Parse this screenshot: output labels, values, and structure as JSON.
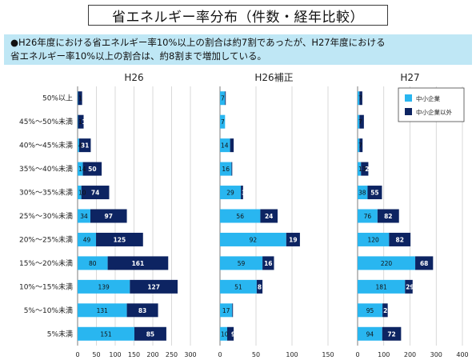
{
  "title": "省エネルギー率分布（件数・経年比較）",
  "summary": {
    "line1": "●H26年度における省エネルギー率10%以上の割合は約7割であったが、H27年度における",
    "line2": "省エネルギー率10%以上の割合は、約8割まで増加している。"
  },
  "colors": {
    "sme": "#29b6f0",
    "non_sme": "#0d2462",
    "grid": "#c9c9c9"
  },
  "chart_data": {
    "type": "bar",
    "orientation": "horizontal",
    "stacked": true,
    "categories": [
      "50%以上",
      "45%～50%未満",
      "40%～45%未満",
      "35%～40%未満",
      "30%～35%未満",
      "25%～30%未満",
      "20%～25%未満",
      "15%～20%未満",
      "10%～15%未満",
      "5%～10%未満",
      "5%未満"
    ],
    "legend": {
      "position": "top-right",
      "entries": [
        "中小企業",
        "中小企業以外"
      ]
    },
    "grid": true,
    "panels": [
      {
        "title": "H26",
        "xlim": [
          0,
          300
        ],
        "xticks": [
          0,
          50,
          100,
          150,
          200,
          250,
          300
        ],
        "series": [
          {
            "name": "中小企業",
            "values": [
              1,
              1,
              4,
              14,
              10,
              34,
              49,
              80,
              139,
              131,
              151
            ],
            "labels": [
              "1",
              "1",
              "4",
              "14",
              "10",
              "34",
              "49",
              "80",
              "139",
              "131",
              "151"
            ]
          },
          {
            "name": "中小企業以外",
            "values": [
              11,
              15,
              31,
              50,
              74,
              97,
              125,
              161,
              127,
              83,
              85
            ],
            "labels": [
              "11",
              "15",
              "31",
              "50",
              "74",
              "97",
              "125",
              "161",
              "127",
              "83",
              "85"
            ]
          }
        ]
      },
      {
        "title": "H26補正",
        "xlim": [
          0,
          150
        ],
        "xticks": [
          0,
          50,
          100,
          150
        ],
        "series": [
          {
            "name": "中小企業",
            "values": [
              7,
              7,
              14,
              16,
              29,
              56,
              92,
              59,
              51,
              17,
              10
            ],
            "labels": [
              "7",
              "7",
              "14",
              "16",
              "29",
              "56",
              "92",
              "59",
              "51",
              "17",
              "10"
            ]
          },
          {
            "name": "中小企業以外",
            "values": [
              1,
              0,
              5,
              1,
              3,
              24,
              19,
              16,
              8,
              1,
              9
            ],
            "labels": [
              "1",
              "",
              "5",
              "1",
              "3",
              "24",
              "19",
              "16",
              "8",
              "1",
              "9"
            ]
          }
        ]
      },
      {
        "title": "H27",
        "xlim": [
          0,
          400
        ],
        "xticks": [
          0,
          100,
          200,
          300,
          400
        ],
        "series": [
          {
            "name": "中小企業",
            "values": [
              7,
              7,
              7,
              13,
              38,
              76,
              120,
              220,
              181,
              95,
              94
            ],
            "labels": [
              "7",
              "7",
              "7",
              "13",
              "38",
              "76",
              "120",
              "220",
              "181",
              "95",
              "94"
            ]
          },
          {
            "name": "中小企業以外",
            "values": [
              11,
              17,
              12,
              28,
              55,
              82,
              82,
              68,
              29,
              20,
              72
            ],
            "labels": [
              "11",
              "17",
              "12",
              "28",
              "55",
              "82",
              "82",
              "68",
              "29",
              "20",
              "72"
            ]
          }
        ]
      }
    ]
  }
}
